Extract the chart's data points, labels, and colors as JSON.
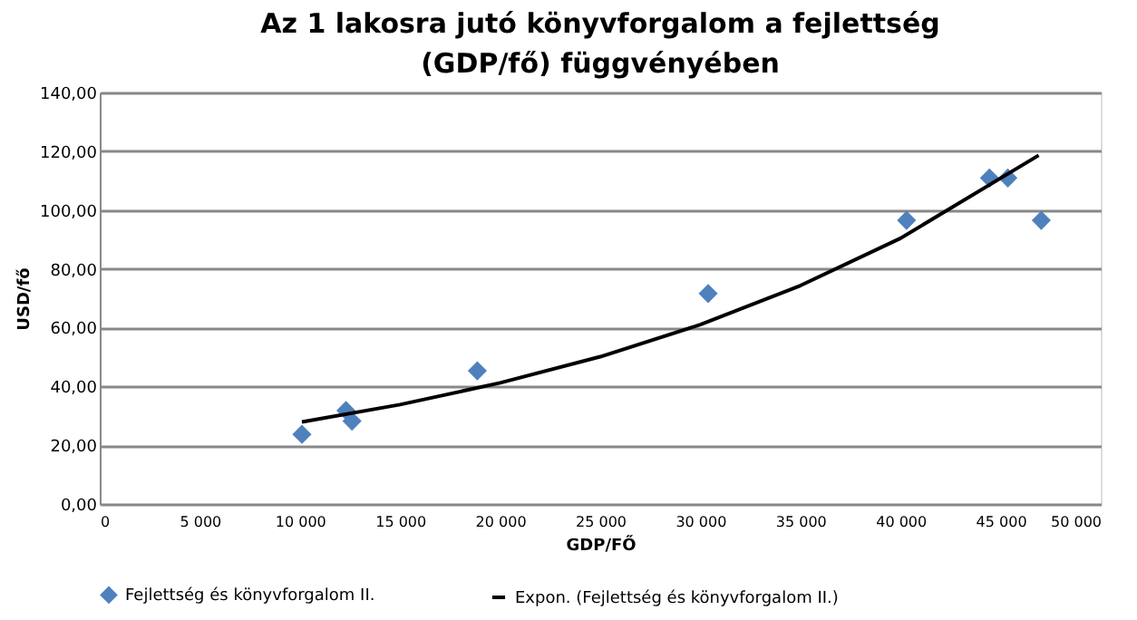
{
  "chart_data": {
    "type": "scatter",
    "title": "Az 1 lakosra jutó könyvforgalom a fejlettség (GDP/fő) függvényében",
    "xlabel": "GDP/FŐ",
    "ylabel": "USD/fő",
    "xlim": [
      0,
      50000
    ],
    "xticks": [
      {
        "value": 0,
        "label": "0"
      },
      {
        "value": 5000,
        "label": "5 000"
      },
      {
        "value": 10000,
        "label": "10 000"
      },
      {
        "value": 15000,
        "label": "15 000"
      },
      {
        "value": 20000,
        "label": "20 000"
      },
      {
        "value": 25000,
        "label": "25 000"
      },
      {
        "value": 30000,
        "label": "30 000"
      },
      {
        "value": 35000,
        "label": "35 000"
      },
      {
        "value": 40000,
        "label": "40 000"
      },
      {
        "value": 45000,
        "label": "45 000"
      },
      {
        "value": 50000,
        "label": "50 000"
      }
    ],
    "ylim": [
      0,
      140
    ],
    "yticks": [
      {
        "value": 0,
        "label": "0,00"
      },
      {
        "value": 20,
        "label": "20,00"
      },
      {
        "value": 40,
        "label": "40,00"
      },
      {
        "value": 60,
        "label": "60,00"
      },
      {
        "value": 80,
        "label": "80,00"
      },
      {
        "value": 100,
        "label": "100,00"
      },
      {
        "value": 120,
        "label": "120,00"
      },
      {
        "value": 140,
        "label": "140,00"
      }
    ],
    "grid": "y",
    "legend": "bottom",
    "series": [
      {
        "name": "Fejlettség és könyvforgalom II.",
        "marker": "diamond",
        "color": "#4f81bd",
        "x": [
          10100,
          12300,
          12600,
          18860,
          30390,
          40300,
          44440,
          45360,
          47030
        ],
        "values": [
          23.7,
          31.8,
          28.2,
          45.3,
          71.6,
          96.5,
          110.9,
          110.9,
          96.5
        ]
      },
      {
        "name": "Expon. (Fejlettség és könyvforgalom II.)",
        "type": "line",
        "line_style": "solid",
        "color": "#000000",
        "x": [
          10100,
          15000,
          20000,
          25000,
          30000,
          35000,
          40000,
          46900
        ],
        "values": [
          27.9,
          33.8,
          41.2,
          50.1,
          61.0,
          74.3,
          90.4,
          118.6
        ]
      }
    ]
  }
}
